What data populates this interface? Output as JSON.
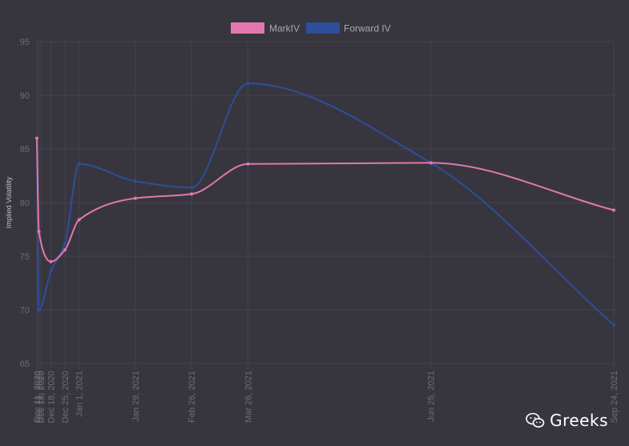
{
  "colors": {
    "background": "#37363f",
    "grid": "#44434c",
    "tick_text": "#6e6c78",
    "markiv": "#e377ad",
    "forward": "#2e4e9b"
  },
  "watermark": {
    "text": "Greeks",
    "icon": "wechat-icon"
  },
  "chart_data": {
    "type": "line",
    "ylabel": "Implied Volatility",
    "ylim": [
      65,
      95
    ],
    "yticks": [
      65,
      70,
      75,
      80,
      85,
      90,
      95
    ],
    "legend_position": "top-center",
    "grid": true,
    "xticks": [
      {
        "date": "2020-12-11",
        "label": "Dec 11, 2020"
      },
      {
        "date": "2020-12-12",
        "label": "Dec 12, 2020"
      },
      {
        "date": "2020-12-13",
        "label": "Dec 13, 2020"
      },
      {
        "date": "2020-12-18",
        "label": "Dec 18, 2020"
      },
      {
        "date": "2020-12-25",
        "label": "Dec 25, 2020"
      },
      {
        "date": "2021-01-01",
        "label": "Jan 1, 2021"
      },
      {
        "date": "2021-01-29",
        "label": "Jan 29, 2021"
      },
      {
        "date": "2021-02-26",
        "label": "Feb 26, 2021"
      },
      {
        "date": "2021-03-26",
        "label": "Mar 26, 2021"
      },
      {
        "date": "2021-06-25",
        "label": "Jun 25, 2021"
      },
      {
        "date": "2021-09-24",
        "label": "Sep 24, 2021"
      }
    ],
    "series": [
      {
        "name": "MarkIV",
        "points": [
          {
            "x": "2020-12-11",
            "y": 86.0
          },
          {
            "x": "2020-12-12",
            "y": 77.3
          },
          {
            "x": "2020-12-18",
            "y": 74.5
          },
          {
            "x": "2020-12-25",
            "y": 75.6
          },
          {
            "x": "2021-01-01",
            "y": 78.4
          },
          {
            "x": "2021-01-29",
            "y": 80.4
          },
          {
            "x": "2021-02-26",
            "y": 80.8
          },
          {
            "x": "2021-03-26",
            "y": 83.6
          },
          {
            "x": "2021-06-25",
            "y": 83.7
          },
          {
            "x": "2021-09-24",
            "y": 79.3
          }
        ]
      },
      {
        "name": "Forward IV",
        "points": [
          {
            "x": "2020-12-11",
            "y": 86.0
          },
          {
            "x": "2020-12-12",
            "y": 70.0
          },
          {
            "x": "2020-12-18",
            "y": 73.6
          },
          {
            "x": "2020-12-25",
            "y": 76.2
          },
          {
            "x": "2021-01-01",
            "y": 83.6
          },
          {
            "x": "2021-01-29",
            "y": 82.0
          },
          {
            "x": "2021-02-26",
            "y": 81.4
          },
          {
            "x": "2021-03-26",
            "y": 91.1
          },
          {
            "x": "2021-06-25",
            "y": 83.7
          },
          {
            "x": "2021-09-24",
            "y": 68.6
          }
        ]
      }
    ]
  }
}
